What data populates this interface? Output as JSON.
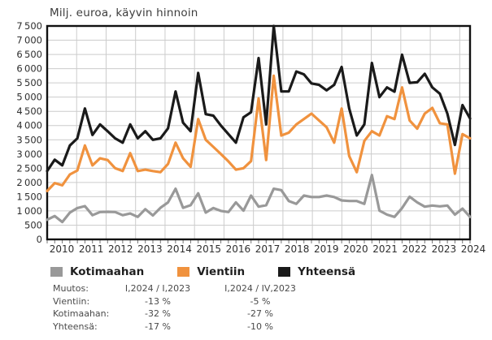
{
  "title": "Milj. euroa, käyvin hinnoin",
  "chart_data": {
    "type": "line",
    "frequency": "quarterly",
    "x_period_start": "2010 Q1",
    "x_period_end": "2024 Q1",
    "x_year_labels": [
      "2010",
      "2011",
      "2012",
      "2013",
      "2014",
      "2015",
      "2016",
      "2017",
      "2018",
      "2019",
      "2020",
      "2021",
      "2022",
      "2023",
      "2024"
    ],
    "ylim": [
      0,
      7500
    ],
    "y_tick_step": 500,
    "grid": true,
    "legend_position": "bottom",
    "series": [
      {
        "name": "Kotimaahan",
        "color": "#999999",
        "values": [
          690,
          820,
          610,
          940,
          1100,
          1170,
          850,
          960,
          970,
          960,
          850,
          910,
          790,
          1060,
          840,
          1110,
          1300,
          1780,
          1110,
          1200,
          1620,
          940,
          1100,
          1000,
          960,
          1300,
          1010,
          1540,
          1150,
          1200,
          1780,
          1730,
          1350,
          1250,
          1540,
          1490,
          1490,
          1540,
          1490,
          1370,
          1350,
          1350,
          1250,
          2260,
          1010,
          870,
          790,
          1100,
          1500,
          1300,
          1150,
          1190,
          1160,
          1190,
          870,
          1080,
          790
        ]
      },
      {
        "name": "Vientiin",
        "color": "#F0923E",
        "values": [
          1700,
          1980,
          1900,
          2280,
          2420,
          3300,
          2600,
          2850,
          2790,
          2500,
          2400,
          3030,
          2400,
          2450,
          2400,
          2360,
          2650,
          3400,
          2850,
          2550,
          4230,
          3500,
          3250,
          3000,
          2740,
          2450,
          2500,
          2750,
          4950,
          2790,
          5750,
          3650,
          3750,
          4040,
          4230,
          4420,
          4180,
          3940,
          3400,
          4600,
          2930,
          2360,
          3460,
          3800,
          3650,
          4330,
          4230,
          5340,
          4180,
          3890,
          4420,
          4620,
          4080,
          4040,
          2310,
          3700,
          3550
        ]
      },
      {
        "name": "Yhteensä",
        "color": "#1A1A1A",
        "values": [
          2400,
          2800,
          2600,
          3300,
          3550,
          4600,
          3670,
          4040,
          3800,
          3550,
          3400,
          4040,
          3550,
          3800,
          3500,
          3550,
          3900,
          5200,
          4100,
          3800,
          5850,
          4400,
          4350,
          4000,
          3700,
          3400,
          4290,
          4470,
          6370,
          4040,
          7500,
          5200,
          5200,
          5900,
          5800,
          5480,
          5430,
          5240,
          5430,
          6060,
          4600,
          3650,
          4040,
          6200,
          5000,
          5340,
          5190,
          6490,
          5500,
          5520,
          5820,
          5340,
          5120,
          4420,
          3320,
          4720,
          4250
        ]
      }
    ]
  },
  "legend": {
    "items": [
      {
        "label": "Kotimaahan",
        "color": "#999999"
      },
      {
        "label": "Vientiin",
        "color": "#F0923E"
      },
      {
        "label": "Yhteensä",
        "color": "#1A1A1A"
      }
    ]
  },
  "change_table": {
    "row_header_label": "Muutos:",
    "col1_header": "I,2024 / I,2023",
    "col2_header": "I,2024 / IV,2023",
    "rows": [
      {
        "label": "Vientiin:",
        "col1": "-13 %",
        "col2": "-5 %"
      },
      {
        "label": "Kotimaahan:",
        "col1": "-32 %",
        "col2": "-27 %"
      },
      {
        "label": "Yhteensä:",
        "col1": "-17 %",
        "col2": "-10 %"
      }
    ]
  },
  "style": {
    "grid_color": "#cccccc",
    "frame_color": "#111111",
    "tick_color": "#777777",
    "axis_label_color": "#2e2e2e"
  }
}
